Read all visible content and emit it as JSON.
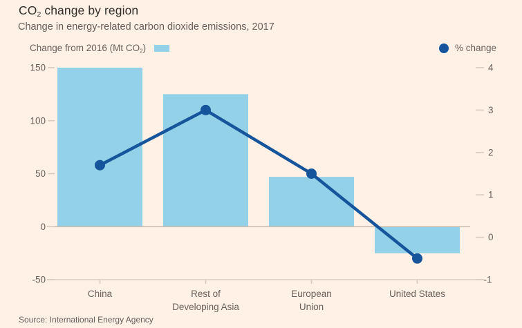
{
  "header": {
    "title_prefix": "CO",
    "title_subscript": "2",
    "title_suffix": " change by region",
    "subtitle": "Change in energy-related carbon dioxide emissions, 2017"
  },
  "legend": {
    "bars_label_prefix": "Change from 2016 (Mt CO",
    "bars_label_subscript": "2",
    "bars_label_suffix": ")",
    "line_label": "% change"
  },
  "footer": {
    "source": "Source: International Energy Agency"
  },
  "colors": {
    "background": "#FFF1E5",
    "bar_fill": "#92D1E7",
    "line_stroke": "#16559C",
    "title_text": "#33302C",
    "muted_text": "#66605B",
    "axis_line": "#D8CEC1",
    "tick_mark": "#D3C9BC",
    "zero_line": "#C6BCAE"
  },
  "chart_data": {
    "type": "combo-bar-line-dual-axis",
    "title": "CO2 change by region",
    "subtitle": "Change in energy-related carbon dioxide emissions, 2017",
    "categories": [
      [
        "China"
      ],
      [
        "Rest of",
        "Developing Asia"
      ],
      [
        "European",
        "Union"
      ],
      [
        "United States"
      ]
    ],
    "series": [
      {
        "name": "Change from 2016 (Mt CO2)",
        "type": "bar",
        "axis": "left",
        "values": [
          150,
          125,
          47,
          -25
        ]
      },
      {
        "name": "% change",
        "type": "line",
        "axis": "right",
        "values": [
          1.7,
          3.0,
          1.5,
          -0.5
        ]
      }
    ],
    "left_axis": {
      "ticks": [
        "150",
        "100",
        "50",
        "0",
        "-50"
      ],
      "range": [
        -50,
        150
      ]
    },
    "right_axis": {
      "ticks": [
        "4",
        "3",
        "2",
        "1",
        "0",
        "-1"
      ],
      "range": [
        -1,
        4
      ]
    },
    "grid": "zero-baseline-and-bottom-line-only",
    "legend_position": "top"
  }
}
